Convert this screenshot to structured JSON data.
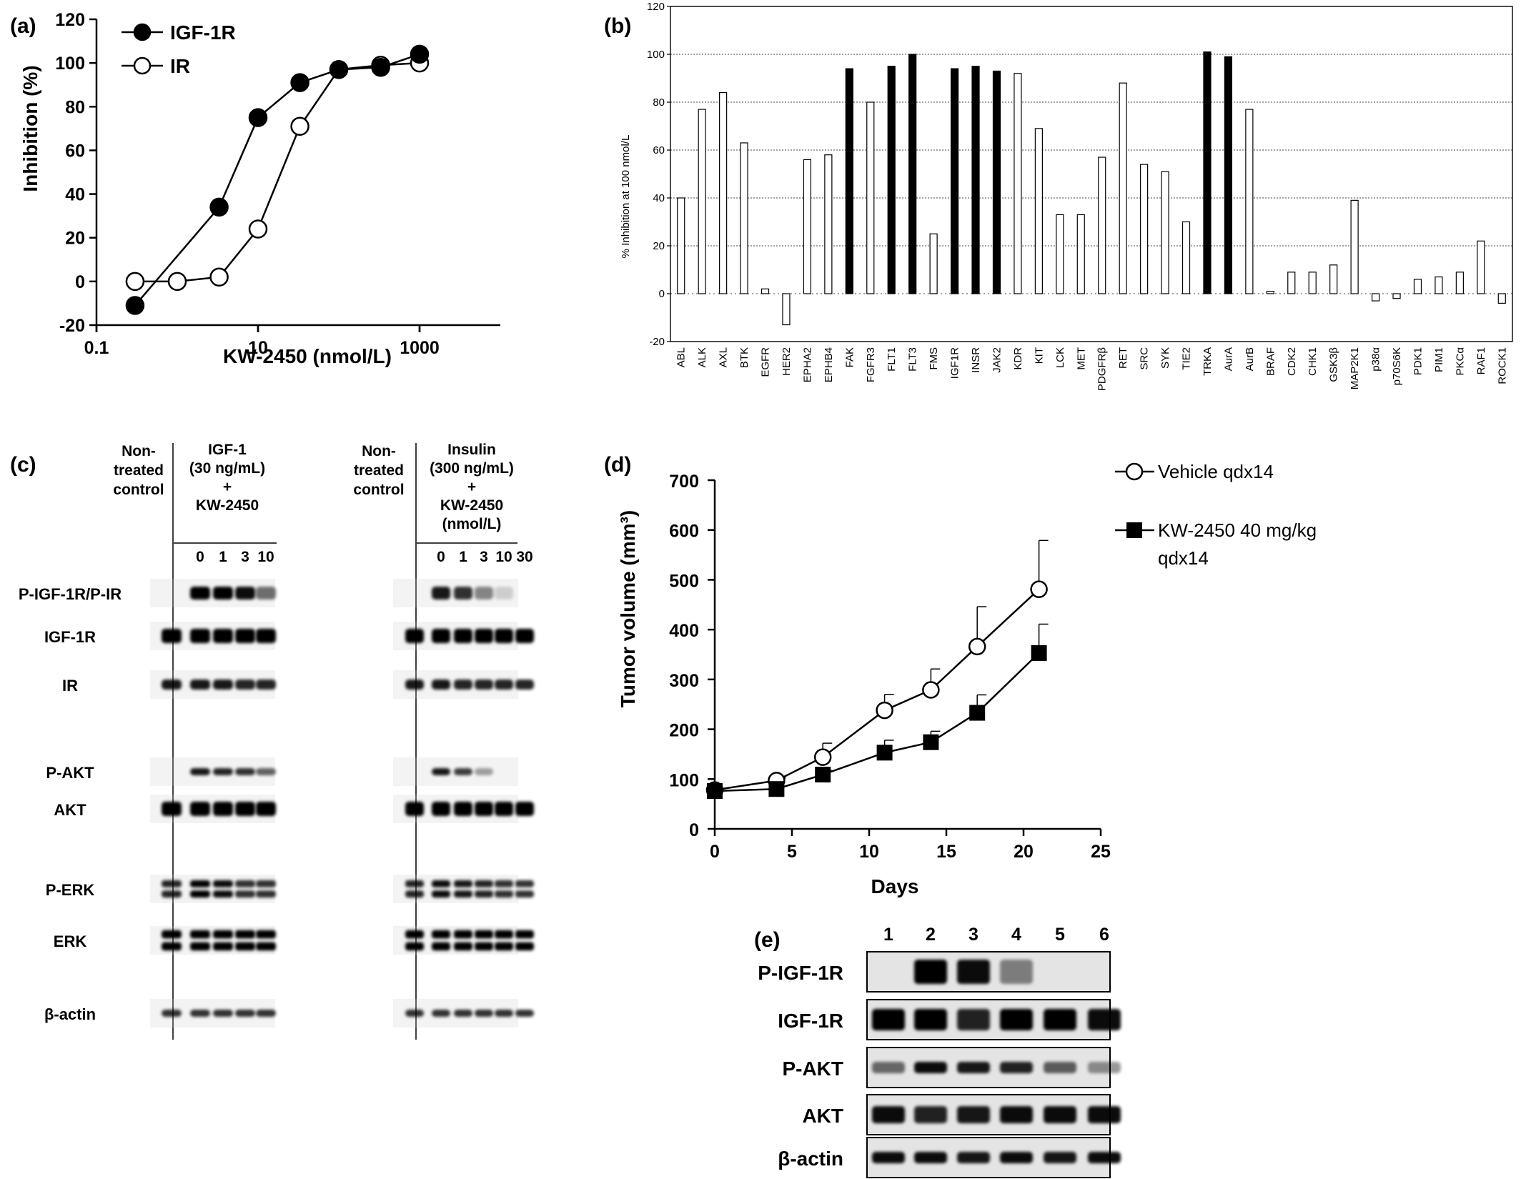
{
  "figure": {
    "panel_labels": [
      "(a)",
      "(b)",
      "(c)",
      "(d)",
      "(e)"
    ]
  },
  "chart_data": [
    {
      "panel": "(a)",
      "type": "line",
      "xlabel": "KW-2450 (nmol/L)",
      "ylabel": "Inhibition (%)",
      "xscale": "log",
      "xlim": [
        0.1,
        10000
      ],
      "ylim": [
        -20,
        120
      ],
      "xticks": [
        {
          "label": "0.1",
          "value": 0.1
        },
        {
          "label": "10",
          "value": 10
        },
        {
          "label": "1000",
          "value": 1000
        }
      ],
      "yticks": [
        -20,
        0,
        20,
        40,
        60,
        80,
        100,
        120
      ],
      "legend": "top-left",
      "series": [
        {
          "name": "IGF-1R",
          "marker": "filled-circle",
          "x": [
            0.3,
            3.3,
            10,
            33,
            100,
            330,
            1000
          ],
          "y": [
            -11,
            34,
            75,
            91,
            97,
            98,
            104
          ]
        },
        {
          "name": "IR",
          "marker": "open-circle",
          "x": [
            0.3,
            1,
            3.3,
            10,
            33,
            100,
            330,
            1000
          ],
          "y": [
            0,
            0,
            2,
            24,
            71,
            97,
            99,
            100
          ]
        }
      ]
    },
    {
      "panel": "(b)",
      "type": "bar",
      "ylabel": "% Inhibition at 100 nmol/L",
      "ylim": [
        -20,
        120
      ],
      "yticks": [
        -20,
        0,
        20,
        40,
        60,
        80,
        100,
        120
      ],
      "grid": true,
      "categories": [
        "ABL",
        "ALK",
        "AXL",
        "BTK",
        "EGFR",
        "HER2",
        "EPHA2",
        "EPHB4",
        "FAK",
        "FGFR3",
        "FLT1",
        "FLT3",
        "FMS",
        "IGF1R",
        "INSR",
        "JAK2",
        "KDR",
        "KIT",
        "LCK",
        "MET",
        "PDGFRβ",
        "RET",
        "SRC",
        "SYK",
        "TIE2",
        "TRKA",
        "AurA",
        "AurB",
        "BRAF",
        "CDK2",
        "CHK1",
        "GSK3β",
        "MAP2K1",
        "p38α",
        "p70S6K",
        "PDK1",
        "PIM1",
        "PKCα",
        "RAF1",
        "ROCK1"
      ],
      "values": [
        40,
        77,
        84,
        63,
        2,
        -13,
        56,
        58,
        94,
        80,
        95,
        100,
        25,
        94,
        95,
        93,
        92,
        69,
        33,
        33,
        57,
        88,
        54,
        51,
        30,
        101,
        99,
        77,
        1,
        9,
        9,
        12,
        39,
        -3,
        -2,
        6,
        7,
        9,
        22,
        -4
      ],
      "highlighted": [
        "FAK",
        "FLT1",
        "FLT3",
        "IGF1R",
        "INSR",
        "JAK2",
        "TRKA",
        "AurA"
      ]
    },
    {
      "panel": "(d)",
      "type": "line",
      "xlabel": "Days",
      "ylabel": "Tumor volume (mm³)",
      "xlim": [
        0,
        25
      ],
      "ylim": [
        0,
        700
      ],
      "xticks": [
        0,
        5,
        10,
        15,
        20,
        25
      ],
      "yticks": [
        0,
        100,
        200,
        300,
        400,
        500,
        600,
        700
      ],
      "legend": "top-right",
      "series": [
        {
          "name": "Vehicle qdx14",
          "marker": "open-circle",
          "x": [
            0,
            4,
            7,
            11,
            14,
            17,
            21
          ],
          "y": [
            78,
            97,
            144,
            238,
            279,
            366,
            481
          ],
          "err": [
            0,
            5,
            28,
            32,
            42,
            80,
            98
          ]
        },
        {
          "name": "KW-2450 40 mg/kg qdx14",
          "marker": "filled-square",
          "x": [
            0,
            4,
            7,
            11,
            14,
            17,
            21
          ],
          "y": [
            76,
            80,
            109,
            153,
            174,
            233,
            353
          ],
          "err": [
            0,
            0,
            8,
            25,
            22,
            36,
            58
          ]
        }
      ]
    }
  ],
  "panel_c": {
    "left": {
      "control": [
        "Non-",
        "treated",
        "control"
      ],
      "treatment": [
        "IGF-1",
        "(30 ng/mL)",
        "+",
        "KW-2450"
      ],
      "lanes": [
        "0",
        "1",
        "3",
        "10"
      ]
    },
    "right": {
      "control": [
        "Non-",
        "treated",
        "control"
      ],
      "treatment": [
        "Insulin",
        "(300 ng/mL)",
        "+",
        "KW-2450",
        "(nmol/L)"
      ],
      "lanes": [
        "0",
        "1",
        "3",
        "10",
        "30"
      ]
    },
    "rows": [
      "P-IGF-1R/P-IR",
      "IGF-1R",
      "IR",
      "P-AKT",
      "AKT",
      "P-ERK",
      "ERK",
      "β-actin"
    ]
  },
  "panel_e": {
    "lanes": [
      "1",
      "2",
      "3",
      "4",
      "5",
      "6"
    ],
    "rows": [
      "P-IGF-1R",
      "IGF-1R",
      "P-AKT",
      "AKT",
      "β-actin"
    ]
  }
}
